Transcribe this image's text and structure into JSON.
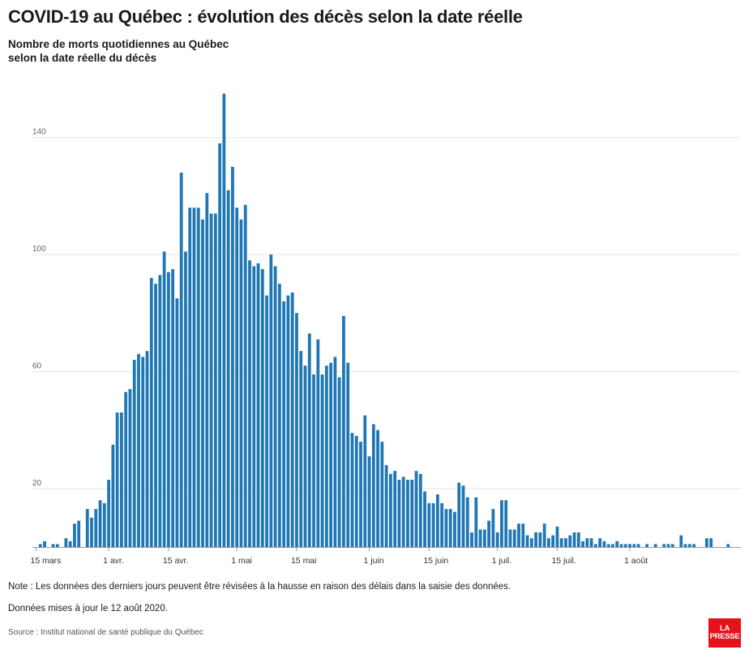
{
  "title": "COVID-19 au Québec : évolution des décès selon la date réelle",
  "subtitle_line1": "Nombre de morts quotidiennes au Québec",
  "subtitle_line2": "selon la date réelle du décès",
  "note": "Note : Les données des derniers jours peuvent être révisées à la hausse en raison des délais dans la saisie des données.",
  "updated": "Données mises à jour le 12 août 2020.",
  "source": "Source : Institut national de santé publique du Québec",
  "logo_line1": "LA",
  "logo_line2": "PRESSE",
  "colors": {
    "bar": "#1f77b4",
    "grid": "#e5e5e5",
    "logo": "#e3121b"
  },
  "chart_data": {
    "type": "bar",
    "title": "COVID-19 au Québec : évolution des décès selon la date réelle",
    "subtitle": "Nombre de morts quotidiennes au Québec selon la date réelle du décès",
    "x_start": "2020-03-15",
    "x_ticks": [
      {
        "date": "2020-03-15",
        "label": "15 mars"
      },
      {
        "date": "2020-04-01",
        "label": "1 avr."
      },
      {
        "date": "2020-04-15",
        "label": "15 avr."
      },
      {
        "date": "2020-05-01",
        "label": "1 mai"
      },
      {
        "date": "2020-05-15",
        "label": "15 mai"
      },
      {
        "date": "2020-06-01",
        "label": "1 juin"
      },
      {
        "date": "2020-06-15",
        "label": "15 juin"
      },
      {
        "date": "2020-07-01",
        "label": "1 juil."
      },
      {
        "date": "2020-07-15",
        "label": "15 juil."
      },
      {
        "date": "2020-08-01",
        "label": "1 août"
      }
    ],
    "y_ticks": [
      20,
      60,
      100,
      140
    ],
    "ylim": [
      0,
      155
    ],
    "grid": true,
    "values": [
      0,
      1,
      2,
      0,
      1,
      1,
      0,
      3,
      2,
      8,
      9,
      0,
      13,
      10,
      13,
      16,
      15,
      23,
      35,
      46,
      46,
      53,
      54,
      64,
      66,
      65,
      67,
      92,
      90,
      93,
      101,
      94,
      95,
      85,
      128,
      101,
      116,
      116,
      116,
      112,
      121,
      114,
      114,
      138,
      155,
      122,
      130,
      116,
      112,
      117,
      98,
      96,
      97,
      95,
      86,
      100,
      96,
      90,
      84,
      86,
      87,
      80,
      67,
      62,
      73,
      59,
      71,
      59,
      62,
      63,
      65,
      58,
      79,
      63,
      39,
      38,
      36,
      45,
      31,
      42,
      40,
      36,
      28,
      25,
      26,
      23,
      24,
      23,
      23,
      26,
      25,
      19,
      15,
      15,
      18,
      15,
      13,
      13,
      12,
      22,
      21,
      17,
      5,
      17,
      6,
      6,
      9,
      13,
      5,
      16,
      16,
      6,
      6,
      8,
      8,
      4,
      3,
      5,
      5,
      8,
      3,
      4,
      7,
      3,
      3,
      4,
      5,
      5,
      2,
      3,
      3,
      1,
      3,
      2,
      1,
      1,
      2,
      1,
      1,
      1,
      1,
      1,
      0,
      1,
      0,
      1,
      0,
      1,
      1,
      1,
      0,
      4,
      1,
      1,
      1,
      0,
      0,
      3,
      3,
      0,
      0,
      0,
      1
    ],
    "xlabel": "",
    "ylabel": ""
  }
}
